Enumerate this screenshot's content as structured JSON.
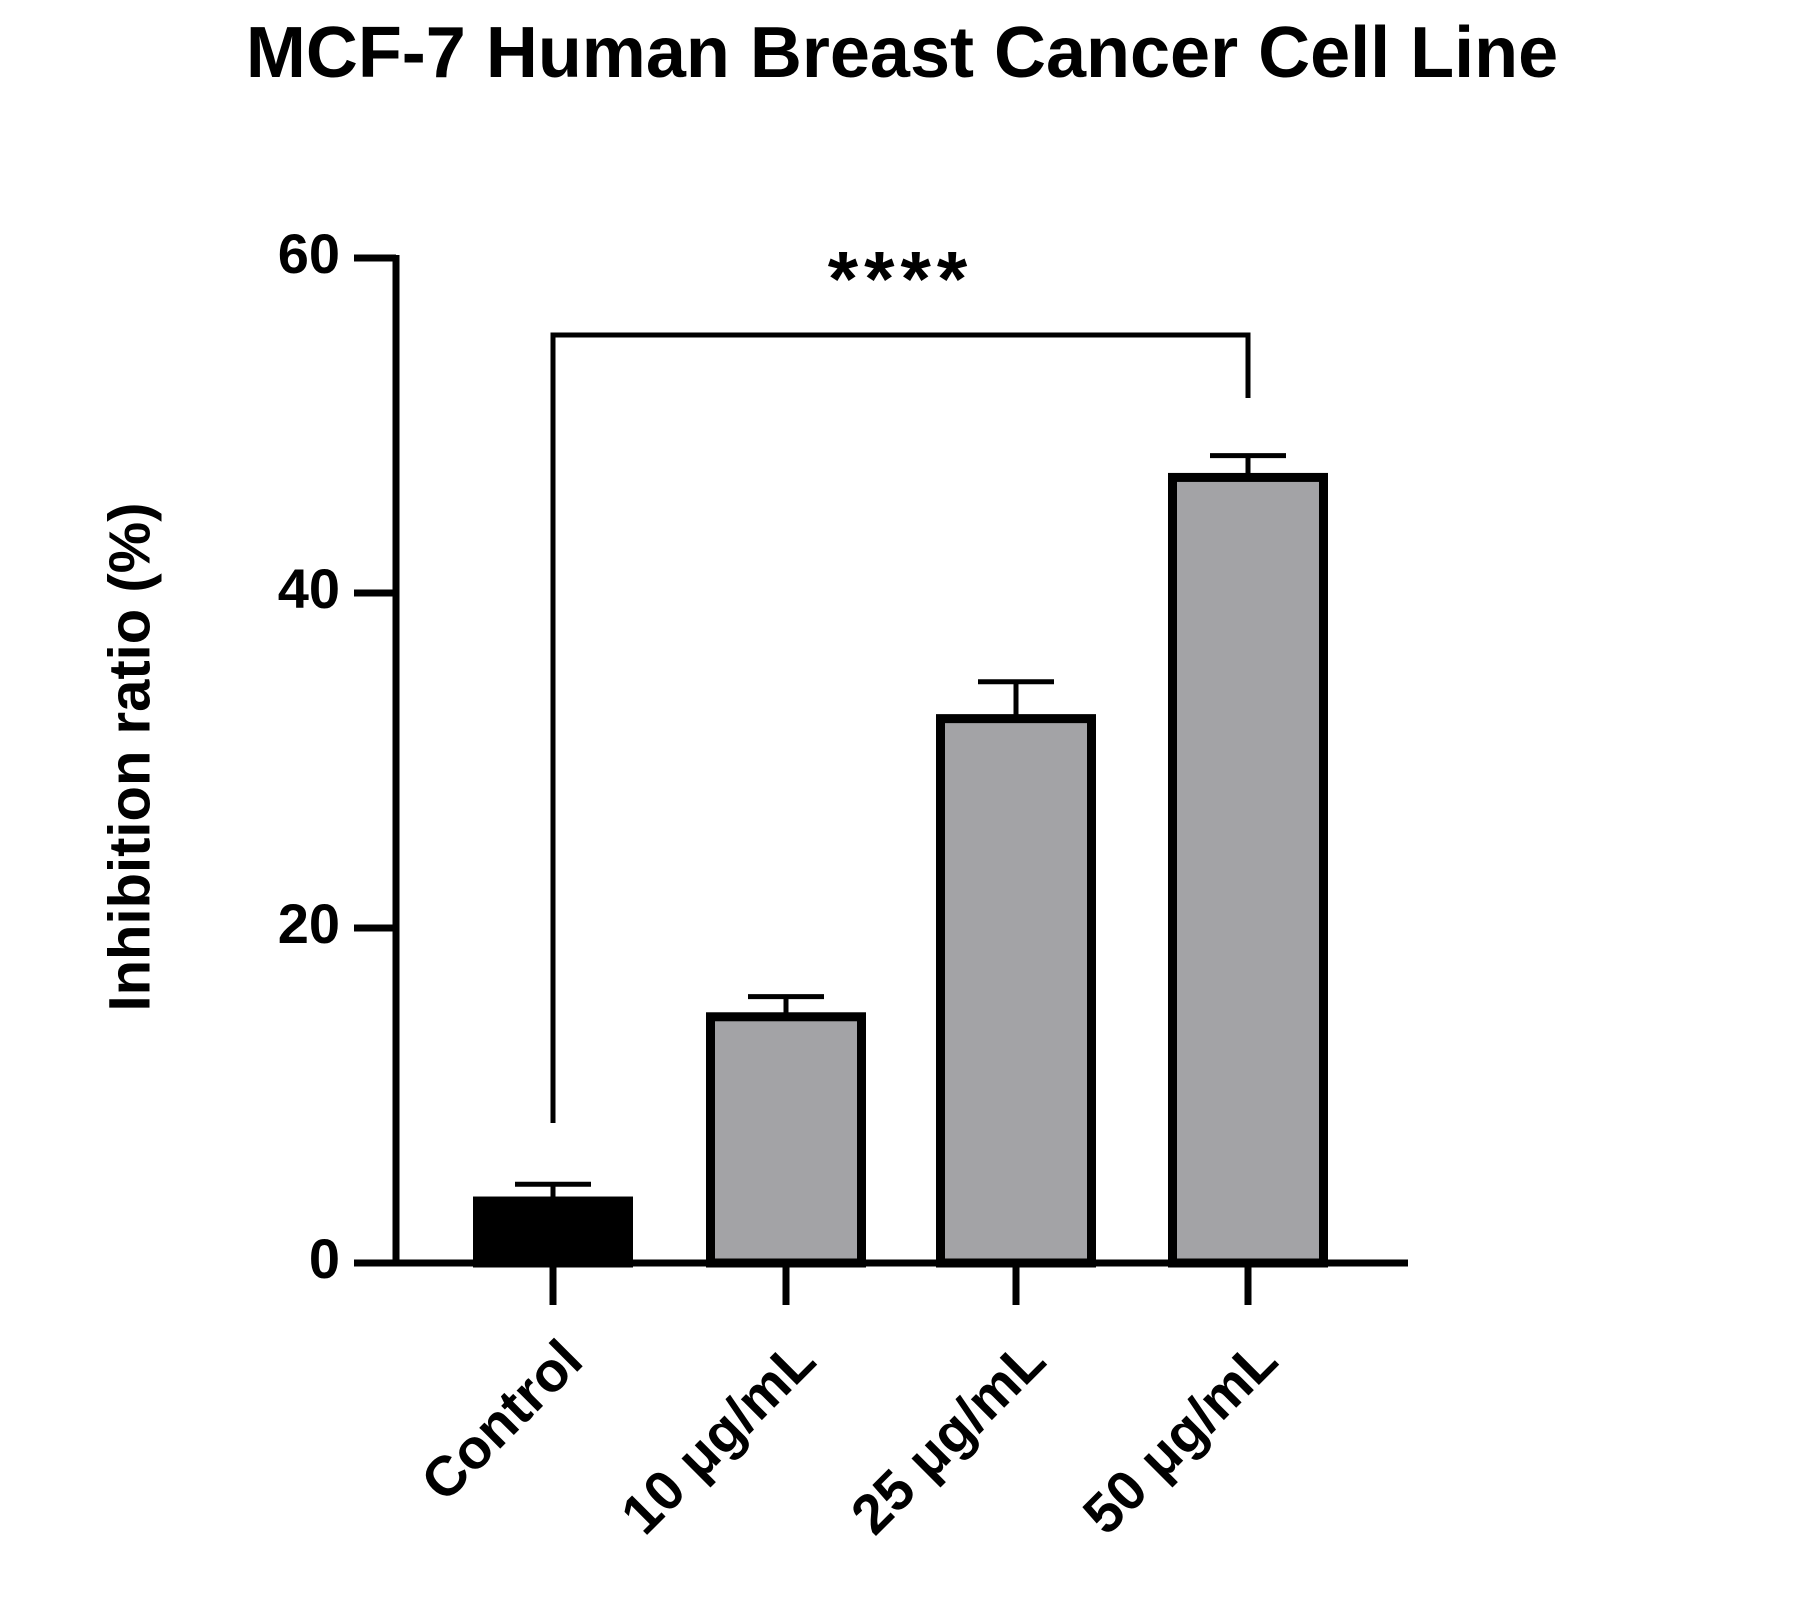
{
  "chart_data": {
    "type": "bar",
    "title": "MCF-7 Human Breast Cancer Cell Line",
    "y_label": "Inhibition ratio (%)",
    "categories": [
      "Control",
      "10 μg/mL",
      "25 μg/mL",
      "50 μg/mL"
    ],
    "values": [
      3.7,
      14.7,
      32.5,
      46.9
    ],
    "errors": [
      1.0,
      1.2,
      2.2,
      1.3
    ],
    "colors": [
      "#000000",
      "#a3a3a6",
      "#a3a3a6",
      "#a3a3a6"
    ],
    "edge_color": "#000000",
    "annotation": "****",
    "ylim": [
      0,
      60
    ],
    "yticks": [
      0,
      20,
      40,
      60
    ],
    "grid": false
  }
}
